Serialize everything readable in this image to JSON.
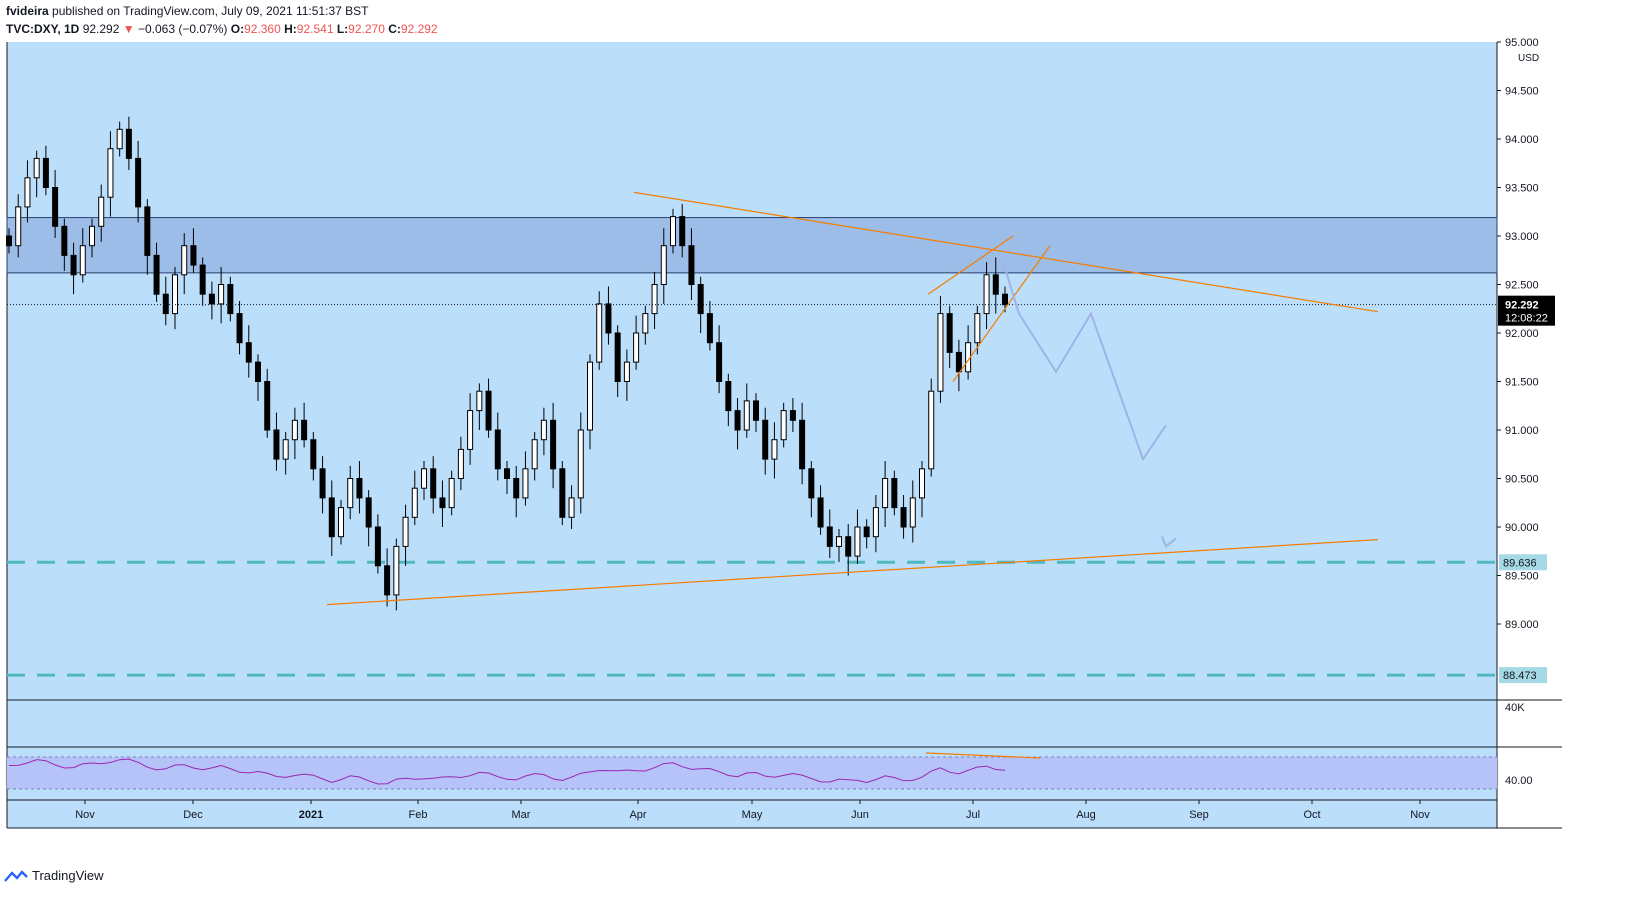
{
  "header": {
    "author": "fvideira",
    "published": "published on TradingView.com, July 09, 2021 11:51:37 BST",
    "symbol": "TVC:DXY, 1D",
    "last": "92.292",
    "arrow": "▼",
    "change": "−0.063 (−0.07%)",
    "o_label": "O:",
    "o_val": "92.360",
    "h_label": "H:",
    "h_val": "92.541",
    "l_label": "L:",
    "l_val": "92.270",
    "c_label": "C:",
    "c_val": "92.292"
  },
  "footer": {
    "brand": "TradingView"
  },
  "colors": {
    "background": "#bbdefb",
    "zone": "#9dbde9",
    "trend": "#f57c00",
    "support": "#4fb8bf",
    "projection": "#9fb3e6",
    "rsi": "#9c27b0",
    "rsi_band": "#b5c3f8",
    "candle": "#000000",
    "price_tag": "#000000",
    "level_tag": "#a5d9e5"
  },
  "chart_data": {
    "type": "candlestick",
    "title": "TVC:DXY, 1D",
    "currency": "USD",
    "ylim": [
      88.2,
      95.0
    ],
    "y_ticks": [
      "95.000",
      "94.500",
      "94.000",
      "93.500",
      "93.000",
      "92.500",
      "92.000",
      "91.500",
      "91.000",
      "90.500",
      "90.000",
      "89.500",
      "89.000"
    ],
    "x_labels": [
      "Nov",
      "Dec",
      "2021",
      "Feb",
      "Mar",
      "Apr",
      "May",
      "Jun",
      "Jul",
      "Aug",
      "Sep",
      "Oct",
      "Nov"
    ],
    "last_price": "92.292",
    "countdown": "12:08:22",
    "support_levels": [
      {
        "value": 89.636,
        "label": "89.636"
      },
      {
        "value": 88.473,
        "label": "88.473"
      }
    ],
    "resistance_zone": [
      92.62,
      93.19
    ],
    "closes": [
      92.9,
      93.3,
      93.6,
      93.8,
      93.5,
      93.1,
      92.8,
      92.6,
      92.9,
      93.1,
      93.4,
      93.9,
      94.1,
      93.8,
      93.3,
      92.8,
      92.4,
      92.2,
      92.6,
      92.9,
      92.7,
      92.4,
      92.3,
      92.5,
      92.2,
      91.9,
      91.7,
      91.5,
      91.0,
      90.7,
      90.9,
      91.1,
      90.9,
      90.6,
      90.3,
      89.9,
      90.2,
      90.5,
      90.3,
      90.0,
      89.6,
      89.3,
      89.8,
      90.1,
      90.4,
      90.6,
      90.3,
      90.2,
      90.5,
      90.8,
      91.2,
      91.4,
      91.0,
      90.6,
      90.5,
      90.3,
      90.6,
      90.9,
      91.1,
      90.6,
      90.1,
      90.3,
      91.0,
      91.7,
      92.3,
      92.0,
      91.5,
      91.7,
      92.0,
      92.2,
      92.5,
      92.9,
      93.2,
      92.9,
      92.5,
      92.2,
      91.9,
      91.5,
      91.2,
      91.0,
      91.3,
      91.1,
      90.7,
      90.9,
      91.2,
      91.1,
      90.6,
      90.3,
      90.0,
      89.8,
      89.9,
      89.7,
      90.0,
      89.9,
      90.2,
      90.5,
      90.2,
      90.0,
      90.3,
      90.6,
      91.4,
      92.2,
      91.8,
      91.6,
      91.9,
      92.2,
      92.6,
      92.4,
      92.292
    ],
    "trendlines": [
      {
        "from": [
          89.2,
          "Jan 2021"
        ],
        "to": [
          89.87,
          "Oct 2021"
        ]
      },
      {
        "from": [
          93.45,
          "Apr 2021"
        ],
        "to": [
          92.22,
          "Oct 2021"
        ]
      }
    ],
    "projection": [
      92.7,
      92.2,
      91.6,
      92.2,
      90.7,
      91.05,
      89.8
    ],
    "volume_label": "40K",
    "rsi": {
      "label": "40.00",
      "value": 40.0
    }
  }
}
